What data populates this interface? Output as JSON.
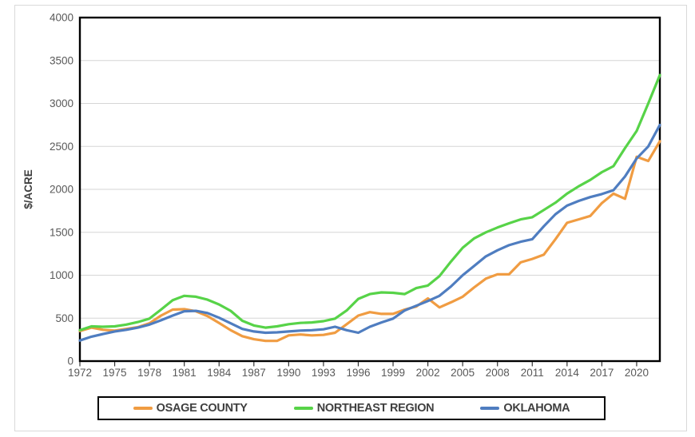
{
  "chart_data": {
    "type": "line",
    "title": "",
    "xlabel": "",
    "ylabel": "$/ACRE",
    "ylim": [
      0,
      4000
    ],
    "y_ticks": [
      0,
      500,
      1000,
      1500,
      2000,
      2500,
      3000,
      3500,
      4000
    ],
    "x_range": [
      1972,
      2022
    ],
    "x_tick_years": [
      1972,
      1975,
      1978,
      1981,
      1984,
      1987,
      1990,
      1993,
      1996,
      1999,
      2002,
      2005,
      2008,
      2011,
      2014,
      2017,
      2020
    ],
    "grid": "horizontal",
    "legend_position": "bottom",
    "x": [
      1972,
      1973,
      1974,
      1975,
      1976,
      1977,
      1978,
      1979,
      1980,
      1981,
      1982,
      1983,
      1984,
      1985,
      1986,
      1987,
      1988,
      1989,
      1990,
      1991,
      1992,
      1993,
      1994,
      1995,
      1996,
      1997,
      1998,
      1999,
      2000,
      2001,
      2002,
      2003,
      2004,
      2005,
      2006,
      2007,
      2008,
      2009,
      2010,
      2011,
      2012,
      2013,
      2014,
      2015,
      2016,
      2017,
      2018,
      2019,
      2020,
      2021,
      2022
    ],
    "series": [
      {
        "name": "OSAGE COUNTY",
        "color": "#F09C42",
        "values": [
          350,
          390,
          365,
          355,
          375,
          395,
          440,
          530,
          600,
          605,
          580,
          525,
          445,
          360,
          290,
          255,
          235,
          235,
          300,
          310,
          300,
          305,
          330,
          430,
          530,
          570,
          550,
          550,
          600,
          635,
          730,
          625,
          685,
          750,
          860,
          960,
          1010,
          1010,
          1150,
          1190,
          1240,
          1420,
          1610,
          1650,
          1690,
          1840,
          1950,
          1890,
          2380,
          2330,
          2560
        ]
      },
      {
        "name": "NORTHEAST REGION",
        "color": "#57D348",
        "values": [
          360,
          405,
          400,
          405,
          425,
          455,
          495,
          600,
          710,
          760,
          750,
          715,
          660,
          585,
          470,
          415,
          390,
          405,
          430,
          445,
          450,
          465,
          495,
          590,
          725,
          780,
          800,
          795,
          780,
          850,
          880,
          990,
          1160,
          1320,
          1430,
          1500,
          1555,
          1605,
          1650,
          1675,
          1760,
          1845,
          1950,
          2035,
          2110,
          2200,
          2270,
          2480,
          2680,
          3000,
          3330
        ]
      },
      {
        "name": "OKLAHOMA",
        "color": "#4F7DC0",
        "values": [
          240,
          285,
          315,
          345,
          365,
          390,
          425,
          475,
          530,
          580,
          585,
          560,
          505,
          440,
          375,
          345,
          330,
          335,
          345,
          355,
          360,
          370,
          400,
          360,
          330,
          400,
          450,
          495,
          590,
          645,
          700,
          760,
          870,
          1000,
          1110,
          1220,
          1290,
          1350,
          1390,
          1420,
          1570,
          1710,
          1810,
          1865,
          1910,
          1945,
          1990,
          2150,
          2360,
          2500,
          2750
        ]
      }
    ],
    "style": {
      "gridline_color": "#d6d6d6",
      "plot_border_color": "#000000",
      "tick_label_color": "#595959",
      "axis_title_color": "#3f3f3f",
      "background": "#ffffff"
    }
  }
}
